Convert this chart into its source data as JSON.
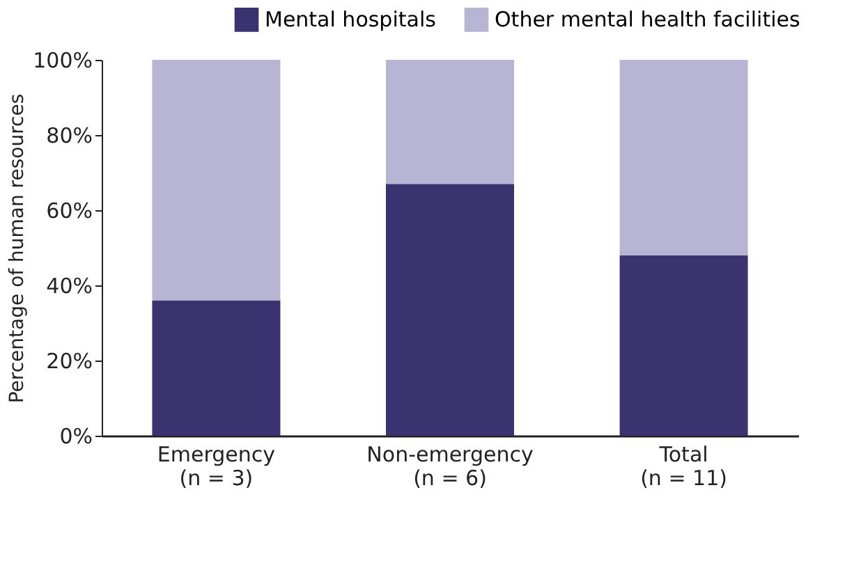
{
  "chart_data": {
    "type": "bar",
    "stacked": true,
    "categories": [
      "Emergency\n(n = 3)",
      "Non-emergency\n(n = 6)",
      "Total\n(n = 11)"
    ],
    "series": [
      {
        "name": "Mental hospitals",
        "color": "#3b3370",
        "values": [
          36,
          67,
          48
        ]
      },
      {
        "name": "Other mental health facilities",
        "color": "#b8b4d4",
        "values": [
          64,
          33,
          52
        ]
      }
    ],
    "ylabel": "Percentage of human resources",
    "ylim": [
      0,
      100
    ],
    "yticks": [
      {
        "value": 0,
        "label": "0%"
      },
      {
        "value": 20,
        "label": "20%"
      },
      {
        "value": 40,
        "label": "40%"
      },
      {
        "value": 60,
        "label": "60%"
      },
      {
        "value": 80,
        "label": "80%"
      },
      {
        "value": 100,
        "label": "100%"
      }
    ],
    "grid": false,
    "legend": "top right"
  }
}
